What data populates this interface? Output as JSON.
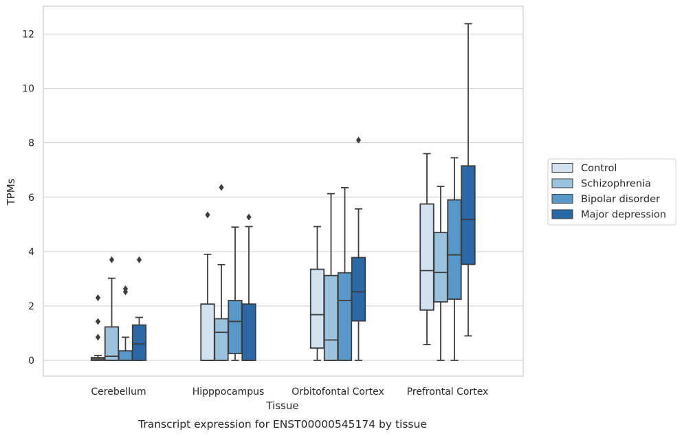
{
  "chart_data": {
    "type": "box",
    "caption": "Transcript expression for ENST00000545174 by tissue",
    "xlabel": "Tissue",
    "ylabel": "TPMs",
    "ylim": [
      -0.6,
      13.0
    ],
    "yticks": [
      0,
      2,
      4,
      6,
      8,
      10,
      12
    ],
    "grid": "horizontal",
    "legend_position": "right-center",
    "categories": [
      "Cerebellum",
      "Hipppocampus",
      "Orbitofontal Cortex",
      "Prefrontal Cortex"
    ],
    "series": [
      {
        "name": "Control",
        "color": "#d2e2f1",
        "boxes": [
          {
            "whisker_low": 0.0,
            "q1": 0.0,
            "median": 0.05,
            "q3": 0.1,
            "whisker_high": 0.18,
            "outliers": [
              2.3,
              1.43,
              0.85
            ]
          },
          {
            "whisker_low": 0.0,
            "q1": 0.0,
            "median": 0.0,
            "q3": 2.07,
            "whisker_high": 3.9,
            "outliers": [
              5.35
            ]
          },
          {
            "whisker_low": 0.0,
            "q1": 0.45,
            "median": 1.68,
            "q3": 3.35,
            "whisker_high": 4.92,
            "outliers": []
          },
          {
            "whisker_low": 0.58,
            "q1": 1.85,
            "median": 3.3,
            "q3": 5.75,
            "whisker_high": 7.6,
            "outliers": []
          }
        ]
      },
      {
        "name": "Schizophrenia",
        "color": "#9ac2dd",
        "boxes": [
          {
            "whisker_low": 0.0,
            "q1": 0.0,
            "median": 0.15,
            "q3": 1.23,
            "whisker_high": 3.02,
            "outliers": [
              3.7
            ]
          },
          {
            "whisker_low": 0.0,
            "q1": 0.0,
            "median": 1.03,
            "q3": 1.53,
            "whisker_high": 3.52,
            "outliers": [
              6.36
            ]
          },
          {
            "whisker_low": 0.0,
            "q1": 0.0,
            "median": 0.75,
            "q3": 3.12,
            "whisker_high": 6.13,
            "outliers": []
          },
          {
            "whisker_low": 0.0,
            "q1": 2.15,
            "median": 3.23,
            "q3": 4.7,
            "whisker_high": 6.4,
            "outliers": []
          }
        ]
      },
      {
        "name": "Bipolar disorder",
        "color": "#5898c8",
        "boxes": [
          {
            "whisker_low": 0.0,
            "q1": 0.0,
            "median": 0.0,
            "q3": 0.35,
            "whisker_high": 0.85,
            "outliers": [
              2.63,
              2.52
            ]
          },
          {
            "whisker_low": 0.0,
            "q1": 0.25,
            "median": 1.43,
            "q3": 2.2,
            "whisker_high": 4.9,
            "outliers": []
          },
          {
            "whisker_low": 0.0,
            "q1": 0.0,
            "median": 2.2,
            "q3": 3.22,
            "whisker_high": 6.35,
            "outliers": []
          },
          {
            "whisker_low": 0.0,
            "q1": 2.25,
            "median": 3.88,
            "q3": 5.9,
            "whisker_high": 7.45,
            "outliers": []
          }
        ]
      },
      {
        "name": "Major depression",
        "color": "#2a68a8",
        "boxes": [
          {
            "whisker_low": 0.0,
            "q1": 0.0,
            "median": 0.6,
            "q3": 1.3,
            "whisker_high": 1.58,
            "outliers": [
              3.7
            ]
          },
          {
            "whisker_low": 0.0,
            "q1": 0.0,
            "median": 0.0,
            "q3": 2.07,
            "whisker_high": 4.92,
            "outliers": [
              5.27
            ]
          },
          {
            "whisker_low": 0.0,
            "q1": 1.45,
            "median": 2.52,
            "q3": 3.78,
            "whisker_high": 5.57,
            "outliers": [
              8.1
            ]
          },
          {
            "whisker_low": 0.9,
            "q1": 3.53,
            "median": 5.18,
            "q3": 7.15,
            "whisker_high": 12.38,
            "outliers": []
          }
        ]
      }
    ]
  }
}
